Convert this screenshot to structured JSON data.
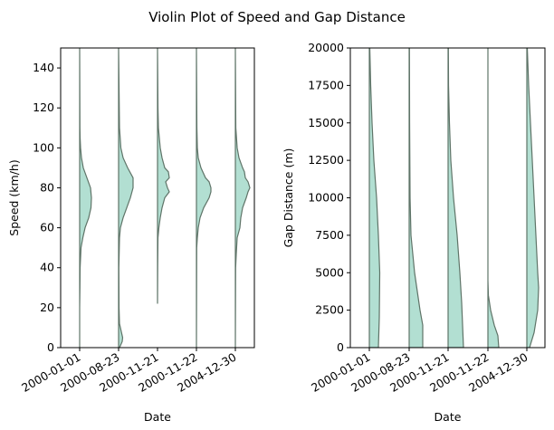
{
  "figure": {
    "title": "Violin Plot of Speed and Gap Distance"
  },
  "colors": {
    "fill": "#b2dfd2",
    "stroke": "#5f7468",
    "axis": "#000000"
  },
  "chart_data": [
    {
      "type": "violin",
      "xlabel": "Date",
      "ylabel": "Speed (km/h)",
      "ylim": [
        0,
        150
      ],
      "yticks": [
        0,
        20,
        40,
        60,
        80,
        100,
        120,
        140
      ],
      "categories": [
        "2000-01-01",
        "2000-08-23",
        "2000-11-21",
        "2000-11-22",
        "2004-12-30"
      ],
      "violins": [
        {
          "category": "2000-01-01",
          "profile": [
            [
              0,
              0
            ],
            [
              20,
              0
            ],
            [
              30,
              0.3
            ],
            [
              40,
              0.5
            ],
            [
              50,
              1.5
            ],
            [
              55,
              3.5
            ],
            [
              60,
              6
            ],
            [
              65,
              10
            ],
            [
              70,
              12.5
            ],
            [
              75,
              13
            ],
            [
              80,
              12
            ],
            [
              85,
              8
            ],
            [
              90,
              4
            ],
            [
              95,
              2
            ],
            [
              100,
              1
            ],
            [
              105,
              0.5
            ],
            [
              110,
              0.3
            ],
            [
              150,
              0
            ]
          ]
        },
        {
          "category": "2000-08-23",
          "profile": [
            [
              0,
              1
            ],
            [
              3,
              4
            ],
            [
              5,
              4.5
            ],
            [
              8,
              3
            ],
            [
              12,
              1
            ],
            [
              20,
              0.5
            ],
            [
              40,
              0.3
            ],
            [
              55,
              1
            ],
            [
              60,
              2
            ],
            [
              65,
              5
            ],
            [
              70,
              9
            ],
            [
              75,
              13
            ],
            [
              80,
              16
            ],
            [
              85,
              16
            ],
            [
              90,
              10
            ],
            [
              95,
              5
            ],
            [
              100,
              2.5
            ],
            [
              110,
              1
            ],
            [
              150,
              0
            ]
          ]
        },
        {
          "category": "2000-11-21",
          "profile": [
            [
              22,
              0
            ],
            [
              40,
              0.2
            ],
            [
              55,
              0.5
            ],
            [
              60,
              1.5
            ],
            [
              65,
              3
            ],
            [
              70,
              5
            ],
            [
              75,
              8
            ],
            [
              78,
              13
            ],
            [
              80,
              11
            ],
            [
              83,
              9
            ],
            [
              85,
              13
            ],
            [
              88,
              12
            ],
            [
              90,
              8
            ],
            [
              95,
              5
            ],
            [
              100,
              3
            ],
            [
              105,
              2
            ],
            [
              110,
              1
            ],
            [
              120,
              0.5
            ],
            [
              150,
              0
            ]
          ]
        },
        {
          "category": "2000-11-22",
          "profile": [
            [
              0,
              0
            ],
            [
              50,
              0.3
            ],
            [
              55,
              1
            ],
            [
              60,
              2
            ],
            [
              65,
              4
            ],
            [
              70,
              8
            ],
            [
              75,
              14
            ],
            [
              78,
              16
            ],
            [
              80,
              16
            ],
            [
              83,
              14
            ],
            [
              85,
              10
            ],
            [
              90,
              5
            ],
            [
              95,
              2
            ],
            [
              100,
              1
            ],
            [
              110,
              0.5
            ],
            [
              150,
              0
            ]
          ]
        },
        {
          "category": "2004-12-30",
          "profile": [
            [
              0,
              0
            ],
            [
              40,
              0.3
            ],
            [
              47,
              1
            ],
            [
              55,
              2
            ],
            [
              60,
              5
            ],
            [
              65,
              6
            ],
            [
              70,
              8
            ],
            [
              75,
              12
            ],
            [
              78,
              14
            ],
            [
              80,
              16
            ],
            [
              83,
              14
            ],
            [
              85,
              11
            ],
            [
              88,
              10
            ],
            [
              90,
              8
            ],
            [
              95,
              4
            ],
            [
              100,
              2
            ],
            [
              110,
              0.5
            ],
            [
              150,
              0
            ]
          ]
        }
      ]
    },
    {
      "type": "violin",
      "xlabel": "Date",
      "ylabel": "Gap Distance (m)",
      "ylim": [
        0,
        20000
      ],
      "yticks": [
        0,
        2500,
        5000,
        7500,
        10000,
        12500,
        15000,
        17500,
        20000
      ],
      "categories": [
        "2000-01-01",
        "2000-08-23",
        "2000-11-21",
        "2000-11-22",
        "2004-12-30"
      ],
      "violins": [
        {
          "category": "2000-01-01",
          "profile": [
            [
              0,
              10
            ],
            [
              2000,
              11
            ],
            [
              5000,
              11.5
            ],
            [
              7500,
              10
            ],
            [
              10000,
              8
            ],
            [
              12500,
              5
            ],
            [
              15000,
              3
            ],
            [
              17500,
              1.5
            ],
            [
              20000,
              0.5
            ]
          ]
        },
        {
          "category": "2000-08-23",
          "profile": [
            [
              0,
              15
            ],
            [
              1500,
              15
            ],
            [
              2500,
              12
            ],
            [
              5000,
              6
            ],
            [
              7500,
              2
            ],
            [
              10000,
              1
            ],
            [
              15000,
              0.5
            ],
            [
              20000,
              0.3
            ]
          ]
        },
        {
          "category": "2000-11-21",
          "profile": [
            [
              0,
              17
            ],
            [
              1500,
              16
            ],
            [
              3000,
              15
            ],
            [
              5000,
              13
            ],
            [
              7500,
              10
            ],
            [
              10000,
              6
            ],
            [
              12500,
              3
            ],
            [
              15000,
              1.5
            ],
            [
              17500,
              0.5
            ],
            [
              20000,
              0.3
            ]
          ]
        },
        {
          "category": "2000-11-22",
          "profile": [
            [
              0,
              12
            ],
            [
              800,
              11
            ],
            [
              1500,
              7
            ],
            [
              2500,
              3
            ],
            [
              3500,
              0.5
            ],
            [
              4500,
              0
            ],
            [
              20000,
              0
            ]
          ]
        },
        {
          "category": "2004-12-30",
          "profile": [
            [
              0,
              3
            ],
            [
              1000,
              8
            ],
            [
              2500,
              12
            ],
            [
              4000,
              13
            ],
            [
              5000,
              12
            ],
            [
              7500,
              10
            ],
            [
              10000,
              8
            ],
            [
              12500,
              6
            ],
            [
              15000,
              4
            ],
            [
              17500,
              2
            ],
            [
              20000,
              0.5
            ]
          ]
        }
      ]
    }
  ]
}
